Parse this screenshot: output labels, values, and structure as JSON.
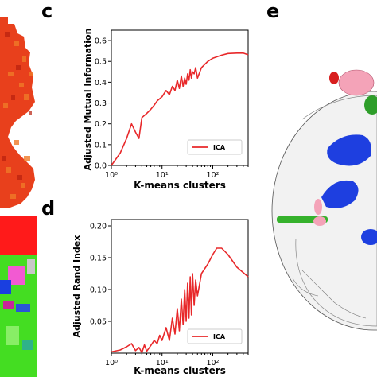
{
  "panels": {
    "c": "c",
    "d": "d",
    "e": "e"
  },
  "chart_data": [
    {
      "type": "line",
      "panel": "c",
      "xlabel": "K-means clusters",
      "ylabel": "Adjusted Mutual Information",
      "xscale": "log",
      "xlim": [
        1,
        500
      ],
      "ylim": [
        0,
        0.65
      ],
      "xticks": [
        1,
        10,
        100
      ],
      "xtick_labels": [
        "10⁰",
        "10¹",
        "10²"
      ],
      "yticks": [
        0.0,
        0.1,
        0.2,
        0.3,
        0.4,
        0.5,
        0.6
      ],
      "ytick_labels": [
        "0.0",
        "0.1",
        "0.2",
        "0.3",
        "0.4",
        "0.5",
        "0.6"
      ],
      "legend": "bottom-right",
      "color": "#e8282a",
      "series": [
        {
          "name": "ICA",
          "x": [
            1,
            1.5,
            2,
            2.5,
            3,
            3.5,
            4,
            5,
            6,
            7,
            8,
            10,
            12,
            14,
            16,
            18,
            20,
            22,
            24,
            26,
            28,
            30,
            32,
            34,
            36,
            38,
            40,
            43,
            46,
            50,
            60,
            80,
            100,
            150,
            200,
            300,
            400,
            500
          ],
          "y": [
            0.0,
            0.06,
            0.13,
            0.2,
            0.16,
            0.13,
            0.23,
            0.25,
            0.27,
            0.29,
            0.31,
            0.33,
            0.36,
            0.34,
            0.38,
            0.36,
            0.41,
            0.37,
            0.43,
            0.38,
            0.42,
            0.39,
            0.44,
            0.41,
            0.46,
            0.42,
            0.45,
            0.44,
            0.47,
            0.42,
            0.47,
            0.5,
            0.515,
            0.53,
            0.538,
            0.54,
            0.54,
            0.532
          ]
        }
      ]
    },
    {
      "type": "line",
      "panel": "d",
      "xlabel": "K-means clusters",
      "ylabel": "Adjusted Rand Index",
      "xscale": "log",
      "xlim": [
        1,
        500
      ],
      "ylim": [
        0,
        0.21
      ],
      "xticks": [
        1,
        10,
        100
      ],
      "xtick_labels": [
        "10⁰",
        "10¹",
        "10²"
      ],
      "yticks": [
        0.05,
        0.1,
        0.15,
        0.2
      ],
      "ytick_labels": [
        "0.05",
        "0.10",
        "0.15",
        "0.20"
      ],
      "legend": "bottom-right",
      "color": "#e8282a",
      "series": [
        {
          "name": "ICA",
          "x": [
            1,
            1.5,
            2,
            2.5,
            3,
            3.5,
            4,
            4.5,
            5,
            6,
            7,
            8,
            9,
            10,
            12,
            14,
            16,
            18,
            20,
            22,
            24,
            26,
            28,
            30,
            32,
            34,
            36,
            38,
            40,
            43,
            46,
            50,
            60,
            80,
            100,
            120,
            150,
            200,
            300,
            500
          ],
          "y": [
            0.002,
            0.005,
            0.01,
            0.015,
            0.004,
            0.009,
            0.001,
            0.013,
            0.003,
            0.012,
            0.02,
            0.015,
            0.028,
            0.02,
            0.04,
            0.02,
            0.055,
            0.03,
            0.07,
            0.035,
            0.085,
            0.045,
            0.1,
            0.05,
            0.11,
            0.055,
            0.12,
            0.06,
            0.125,
            0.075,
            0.115,
            0.09,
            0.125,
            0.14,
            0.155,
            0.165,
            0.165,
            0.155,
            0.135,
            0.12
          ]
        }
      ]
    }
  ]
}
